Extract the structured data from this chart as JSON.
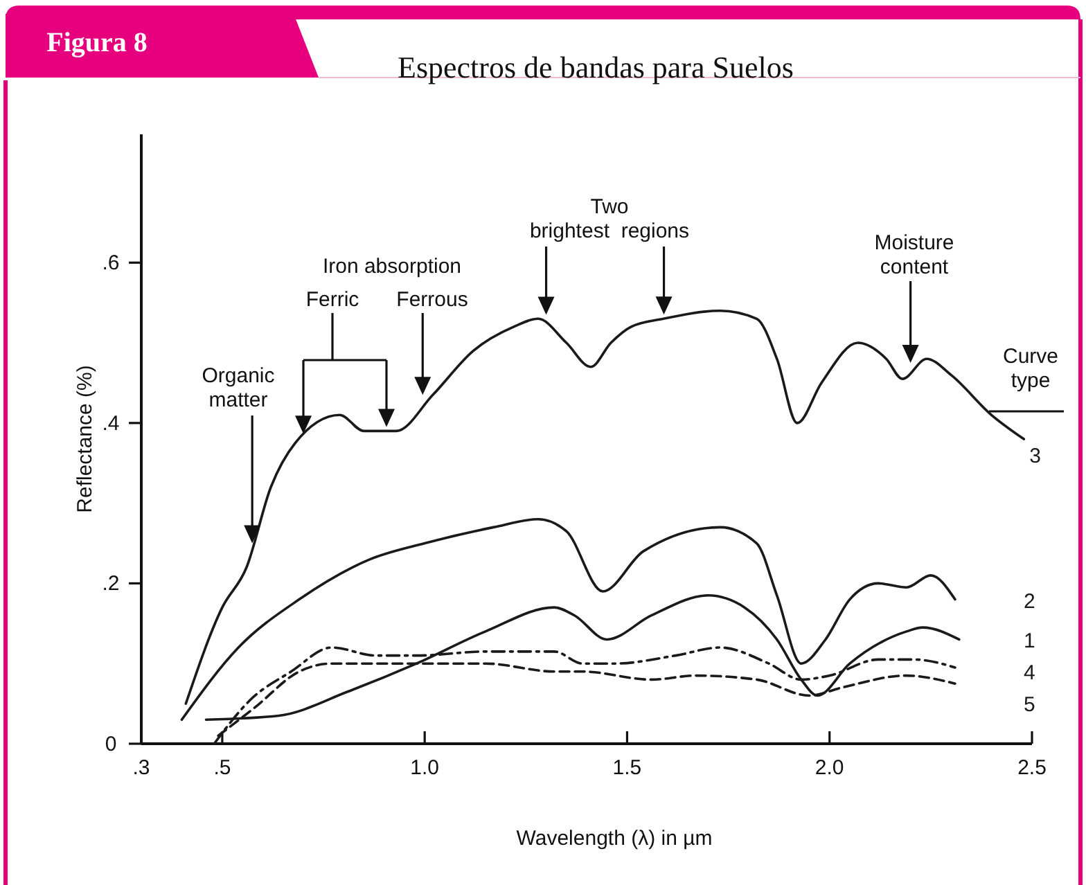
{
  "chart_data": {
    "type": "line",
    "title": "Espectros de bandas para Suelos",
    "xlabel": "Wavelength (λ) in µm",
    "ylabel": "Reflectance (%)",
    "xlim": [
      0.3,
      2.5
    ],
    "xticks": [
      {
        "value": 0.3,
        "label": ".3"
      },
      {
        "value": 0.5,
        "label": ".5"
      },
      {
        "value": 1.0,
        "label": "1.0"
      },
      {
        "value": 1.5,
        "label": "1.5"
      },
      {
        "value": 2.0,
        "label": "2.0"
      },
      {
        "value": 2.5,
        "label": "2.5"
      }
    ],
    "ylim": [
      0,
      0.76
    ],
    "yticks": [
      {
        "value": 0,
        "label": "0"
      },
      {
        "value": 0.2,
        "label": ".2"
      },
      {
        "value": 0.4,
        "label": ".4"
      },
      {
        "value": 0.6,
        "label": ".6"
      }
    ],
    "grid": false,
    "legend": false,
    "marker": "none",
    "series": [
      {
        "name": "3",
        "color": "#1a1a1a",
        "line_style": "solid",
        "x": [
          0.41,
          0.5,
          0.56,
          0.62,
          0.68,
          0.79,
          0.85,
          0.93,
          1.02,
          1.12,
          1.22,
          1.28,
          1.35,
          1.41,
          1.46,
          1.51,
          1.59,
          1.73,
          1.82,
          1.87,
          1.92,
          1.98,
          2.07,
          2.14,
          2.18,
          2.24,
          2.3,
          2.4,
          2.48
        ],
        "values": [
          0.05,
          0.17,
          0.22,
          0.32,
          0.375,
          0.41,
          0.39,
          0.39,
          0.435,
          0.49,
          0.52,
          0.53,
          0.5,
          0.47,
          0.5,
          0.52,
          0.53,
          0.54,
          0.53,
          0.48,
          0.4,
          0.45,
          0.5,
          0.48,
          0.455,
          0.48,
          0.46,
          0.41,
          0.38
        ]
      },
      {
        "name": "2",
        "color": "#1a1a1a",
        "line_style": "solid",
        "x": [
          0.4,
          0.54,
          0.69,
          0.865,
          1.0,
          1.17,
          1.28,
          1.35,
          1.44,
          1.54,
          1.73,
          1.82,
          1.87,
          1.93,
          1.99,
          2.05,
          2.12,
          2.19,
          2.25,
          2.31
        ],
        "values": [
          0.03,
          0.12,
          0.18,
          0.23,
          0.25,
          0.27,
          0.28,
          0.265,
          0.19,
          0.24,
          0.27,
          0.25,
          0.185,
          0.1,
          0.13,
          0.18,
          0.2,
          0.195,
          0.21,
          0.18
        ]
      },
      {
        "name": "1",
        "color": "#1a1a1a",
        "line_style": "solid",
        "x": [
          0.46,
          0.64,
          0.81,
          0.98,
          1.15,
          1.32,
          1.37,
          1.45,
          1.56,
          1.7,
          1.79,
          1.87,
          1.93,
          1.97,
          2.05,
          2.19,
          2.23,
          2.32
        ],
        "values": [
          0.03,
          0.035,
          0.065,
          0.1,
          0.14,
          0.17,
          0.16,
          0.13,
          0.16,
          0.185,
          0.17,
          0.13,
          0.08,
          0.06,
          0.1,
          0.14,
          0.145,
          0.13
        ]
      },
      {
        "name": "4",
        "color": "#1a1a1a",
        "line_style": "dashdot",
        "x": [
          0.48,
          0.57,
          0.67,
          0.77,
          0.88,
          0.98,
          1.15,
          1.32,
          1.39,
          1.47,
          1.62,
          1.73,
          1.85,
          1.93,
          2.0,
          2.12,
          2.21,
          2.31
        ],
        "values": [
          0.0,
          0.055,
          0.09,
          0.12,
          0.11,
          0.11,
          0.115,
          0.115,
          0.1,
          0.1,
          0.11,
          0.12,
          0.1,
          0.08,
          0.085,
          0.105,
          0.105,
          0.095
        ]
      },
      {
        "name": "5",
        "color": "#1a1a1a",
        "line_style": "dashed",
        "x": [
          0.49,
          0.58,
          0.69,
          0.77,
          0.98,
          1.15,
          1.32,
          1.39,
          1.56,
          1.67,
          1.82,
          1.95,
          2.03,
          2.19,
          2.31
        ],
        "values": [
          0.01,
          0.045,
          0.09,
          0.1,
          0.1,
          0.1,
          0.09,
          0.09,
          0.08,
          0.085,
          0.08,
          0.06,
          0.07,
          0.085,
          0.075
        ]
      }
    ],
    "annotations": [
      {
        "text": "Organic\nmatter",
        "x": 0.574,
        "y": 0.25
      },
      "Iron absorption",
      "Ferric",
      {
        "text": "Ferrous",
        "x": 0.995,
        "y": 0.435
      },
      {
        "text": "Two\nbrightest  regions",
        "x": 1.3,
        "y": 0.535
      },
      {
        "text": "Moisture\ncontent",
        "x": 2.2,
        "y": 0.475
      },
      "Curve\ntype",
      "Figura 8"
    ]
  }
}
